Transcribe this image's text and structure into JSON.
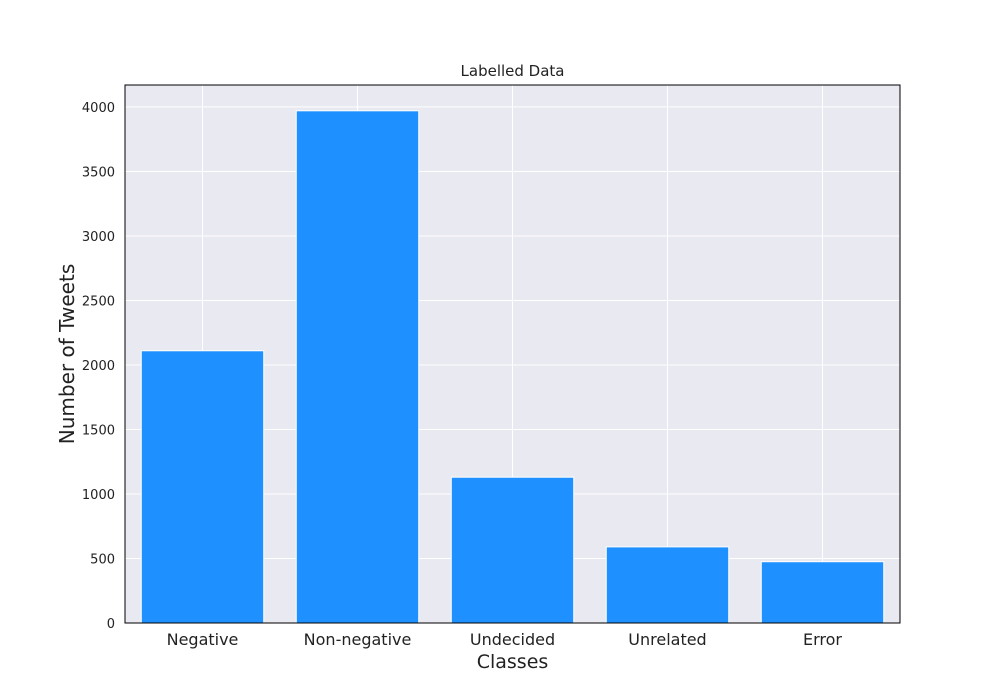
{
  "chart_data": {
    "type": "bar",
    "title": "Labelled Data",
    "xlabel": "Classes",
    "ylabel": "Number of Tweets",
    "categories": [
      "Negative",
      "Non-negative",
      "Undecided",
      "Unrelated",
      "Error"
    ],
    "values": [
      2110,
      3970,
      1130,
      590,
      475
    ],
    "ylim": [
      0,
      4170
    ],
    "yticks": [
      0,
      500,
      1000,
      1500,
      2000,
      2500,
      3000,
      3500,
      4000
    ],
    "grid": true,
    "colors": {
      "bar": "#1f90ff",
      "plot_background": "#e9e9f1",
      "grid": "#ffffff",
      "frame": "#000000"
    }
  }
}
